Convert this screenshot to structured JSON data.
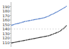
{
  "chart_data": {
    "type": "line",
    "categories": [
      null,
      null,
      null,
      null,
      null,
      null,
      null,
      null,
      null,
      null,
      null,
      null,
      null,
      null,
      null,
      null,
      null,
      null,
      null,
      null,
      null,
      null,
      null,
      null,
      null,
      null,
      null,
      null,
      null,
      null,
      null,
      null,
      null,
      null,
      null,
      null,
      null,
      null,
      null,
      null,
      null,
      null,
      null,
      null,
      null,
      null,
      null,
      null
    ],
    "series": [
      {
        "color": "#4472c4",
        "marker": "square",
        "line_style": "dashdot",
        "values": [
          148.5,
          149.0,
          150.0,
          151.0,
          151.5,
          152.0,
          152.5,
          153.5,
          154.0,
          155.0,
          155.5,
          156.5,
          157.0,
          157.5,
          158.0,
          158.5,
          159.0,
          159.5,
          160.0,
          160.5,
          161.0,
          161.5,
          162.0,
          162.5,
          163.0,
          163.5,
          164.0,
          164.5,
          165.0,
          166.0,
          167.0,
          168.0,
          169.0,
          170.5,
          172.0,
          173.0,
          174.0,
          175.5,
          177.0,
          178.0,
          179.5,
          181.0,
          182.5,
          184.0,
          185.5,
          187.0,
          188.5,
          190.5
        ]
      },
      {
        "color": "#1a1a1a",
        "marker": "square",
        "line_style": "dashdot",
        "values": [
          109.0,
          109.5,
          110.0,
          110.5,
          111.0,
          111.5,
          112.0,
          112.5,
          113.0,
          113.5,
          114.0,
          114.5,
          115.0,
          115.5,
          116.0,
          116.5,
          117.0,
          117.5,
          118.0,
          118.5,
          119.0,
          119.5,
          120.0,
          120.5,
          121.0,
          121.5,
          122.0,
          122.5,
          123.0,
          123.5,
          124.0,
          124.5,
          125.0,
          126.0,
          127.0,
          128.0,
          129.0,
          130.0,
          131.0,
          132.0,
          133.0,
          134.5,
          136.0,
          138.0,
          140.0,
          142.0,
          144.5,
          147.0
        ]
      }
    ],
    "reference_line": {
      "value": 140,
      "color": "#c0c0c0",
      "line_style": "dashed"
    },
    "ylim": [
      100,
      200
    ],
    "yticks": [
      110,
      120,
      130,
      140,
      150,
      160,
      170,
      180,
      190
    ],
    "tick_labels": "y",
    "grid": false
  }
}
